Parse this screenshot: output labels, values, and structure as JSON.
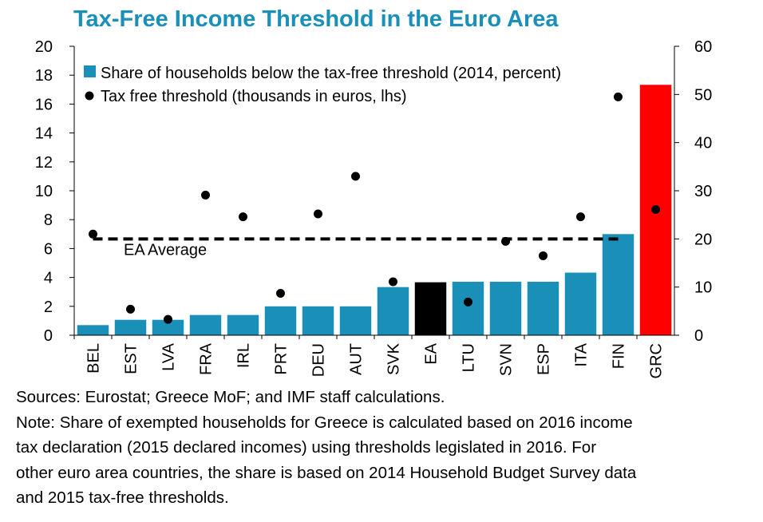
{
  "chart_data": {
    "type": "bar",
    "title": "Tax-Free Income Threshold in the Euro Area",
    "categories": [
      "BEL",
      "EST",
      "LVA",
      "FRA",
      "IRL",
      "PRT",
      "DEU",
      "AUT",
      "SVK",
      "EA",
      "LTU",
      "SVN",
      "ESP",
      "ITA",
      "FIN",
      "GRC"
    ],
    "left_axis": {
      "ylim": [
        0,
        20
      ],
      "ticks": [
        "0",
        "2",
        "4",
        "6",
        "8",
        "10",
        "12",
        "14",
        "16",
        "18",
        "20"
      ]
    },
    "right_axis": {
      "ylim": [
        0,
        60
      ],
      "ticks": [
        "0",
        "10",
        "20",
        "30",
        "40",
        "50",
        "60"
      ]
    },
    "series": [
      {
        "name": "Share of households below the tax-free threshold (2014, percent)",
        "type": "bar",
        "axis": "right",
        "values": [
          2.1,
          3.2,
          3.2,
          4.2,
          4.2,
          6.0,
          6.0,
          6.0,
          10.0,
          11.0,
          11.1,
          11.1,
          11.1,
          13.0,
          21.0,
          52.0
        ],
        "color": "#1a8fb8"
      },
      {
        "name": "Tax free threshold (thousands in euros, lhs)",
        "type": "scatter",
        "axis": "left",
        "values": [
          7.0,
          1.8,
          1.1,
          9.7,
          8.2,
          2.9,
          8.4,
          11.0,
          3.7,
          null,
          2.3,
          6.5,
          5.5,
          8.2,
          16.5,
          8.7
        ],
        "color": "#000000"
      }
    ],
    "highlight_colors": {
      "EA": "#000000",
      "GRC": "#ff0000"
    },
    "reference_line": {
      "label": "EA Average",
      "value": 20,
      "axis": "right",
      "style": "dashed"
    }
  },
  "notes": {
    "sources": "Sources: Eurostat; Greece MoF; and IMF staff calculations.",
    "note_lines": [
      "Note: Share of exempted households for Greece is calculated based on 2016 income",
      " tax declaration (2015 declared incomes) using thresholds legislated in 2016. For",
      "other euro area countries, the share is based on 2014 Household Budget Survey data",
      " and 2015 tax-free thresholds."
    ]
  }
}
